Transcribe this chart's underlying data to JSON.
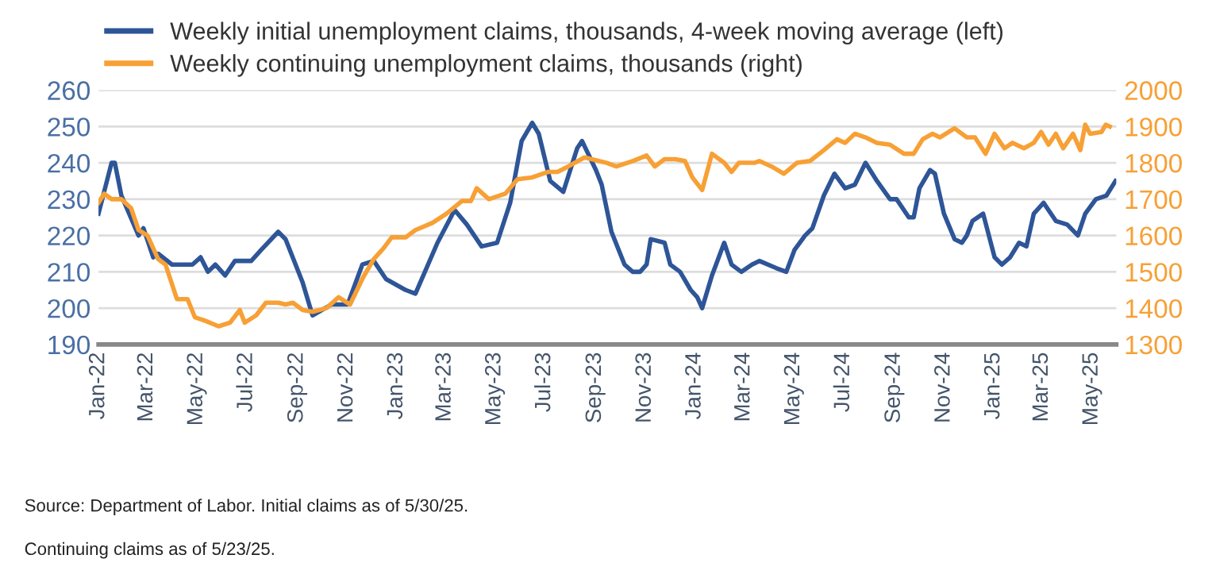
{
  "chart_data": {
    "type": "line",
    "series": [
      {
        "name": "Weekly initial unemployment claims, thousands, 4-week moving average (left)",
        "color": "#2e5597",
        "axis": "y",
        "x": [
          "2022-01-01",
          "2022-01-17",
          "2022-01-21",
          "2022-01-29",
          "2022-02-19",
          "2022-02-25",
          "2022-03-09",
          "2022-03-15",
          "2022-04-01",
          "2022-04-26",
          "2022-05-06",
          "2022-05-15",
          "2022-05-24",
          "2022-06-05",
          "2022-06-17",
          "2022-07-07",
          "2022-07-19",
          "2022-08-09",
          "2022-08-18",
          "2022-09-08",
          "2022-09-20",
          "2022-10-13",
          "2022-11-02",
          "2022-11-20",
          "2022-12-04",
          "2022-12-19",
          "2023-01-12",
          "2023-01-24",
          "2023-02-20",
          "2023-03-13",
          "2023-03-28",
          "2023-04-15",
          "2023-05-04",
          "2023-05-20",
          "2023-06-03",
          "2023-06-16",
          "2023-06-24",
          "2023-07-08",
          "2023-07-24",
          "2023-08-10",
          "2023-08-16",
          "2023-09-02",
          "2023-09-09",
          "2023-09-21",
          "2023-10-07",
          "2023-10-17",
          "2023-10-26",
          "2023-11-03",
          "2023-11-08",
          "2023-11-25",
          "2023-12-02",
          "2023-12-14",
          "2023-12-27",
          "2024-01-04",
          "2024-01-10",
          "2024-01-22",
          "2024-02-06",
          "2024-02-15",
          "2024-02-27",
          "2024-03-11",
          "2024-03-20",
          "2024-04-10",
          "2024-04-22",
          "2024-05-02",
          "2024-05-15",
          "2024-05-24",
          "2024-06-07",
          "2024-06-20",
          "2024-07-03",
          "2024-07-15",
          "2024-07-28",
          "2024-08-11",
          "2024-08-27",
          "2024-09-04",
          "2024-09-19",
          "2024-09-25",
          "2024-10-02",
          "2024-10-15",
          "2024-10-21",
          "2024-11-01",
          "2024-11-14",
          "2024-11-23",
          "2024-11-29",
          "2024-12-06",
          "2024-12-19",
          "2025-01-02",
          "2025-01-11",
          "2025-01-21",
          "2025-02-01",
          "2025-02-10",
          "2025-02-19",
          "2025-03-03",
          "2025-03-18",
          "2025-04-01",
          "2025-04-14",
          "2025-04-23",
          "2025-05-06",
          "2025-05-19",
          "2025-05-30"
        ],
        "values": [
          226,
          240,
          240,
          231,
          220,
          222,
          214,
          215,
          212,
          212,
          214,
          210,
          212,
          209,
          213,
          213,
          216,
          221,
          219,
          207,
          198,
          201,
          201,
          212,
          213,
          208,
          205,
          204,
          218,
          227,
          223,
          217,
          218,
          229,
          246,
          251,
          248,
          235,
          232,
          244,
          246,
          238,
          234,
          221,
          212,
          210,
          210,
          212,
          219,
          218,
          212,
          210,
          205,
          203,
          200,
          209,
          218,
          212,
          210,
          212,
          213,
          211,
          210,
          216,
          220,
          222,
          231,
          237,
          233,
          234,
          240,
          235,
          230,
          230,
          225,
          225,
          233,
          238,
          237,
          226,
          219,
          218,
          220,
          224,
          226,
          214,
          212,
          214,
          218,
          217,
          226,
          229,
          224,
          223,
          220,
          226,
          230,
          231,
          235
        ]
      },
      {
        "name": "Weekly continuing unemployment claims, thousands (right)",
        "color": "#f7a035",
        "axis": "y2",
        "x": [
          "2022-01-01",
          "2022-01-08",
          "2022-01-17",
          "2022-01-29",
          "2022-02-10",
          "2022-02-19",
          "2022-03-02",
          "2022-03-15",
          "2022-03-24",
          "2022-04-07",
          "2022-04-20",
          "2022-04-29",
          "2022-05-12",
          "2022-05-28",
          "2022-06-11",
          "2022-06-23",
          "2022-06-29",
          "2022-07-13",
          "2022-07-25",
          "2022-08-09",
          "2022-08-18",
          "2022-08-27",
          "2022-09-08",
          "2022-09-20",
          "2022-10-07",
          "2022-10-22",
          "2022-11-05",
          "2022-11-21",
          "2022-12-04",
          "2022-12-16",
          "2022-12-26",
          "2023-01-12",
          "2023-01-24",
          "2023-02-14",
          "2023-03-03",
          "2023-03-22",
          "2023-04-02",
          "2023-04-09",
          "2023-04-24",
          "2023-05-14",
          "2023-05-29",
          "2023-06-16",
          "2023-07-05",
          "2023-07-17",
          "2023-07-30",
          "2023-08-19",
          "2023-09-15",
          "2023-09-27",
          "2023-10-17",
          "2023-11-03",
          "2023-11-13",
          "2023-11-25",
          "2023-12-08",
          "2023-12-20",
          "2023-12-29",
          "2024-01-10",
          "2024-01-22",
          "2024-02-06",
          "2024-02-15",
          "2024-02-24",
          "2024-03-14",
          "2024-03-20",
          "2024-04-04",
          "2024-04-19",
          "2024-05-05",
          "2024-05-21",
          "2024-06-07",
          "2024-06-23",
          "2024-07-03",
          "2024-07-15",
          "2024-07-28",
          "2024-08-11",
          "2024-08-27",
          "2024-09-13",
          "2024-09-25",
          "2024-10-06",
          "2024-10-18",
          "2024-10-27",
          "2024-11-14",
          "2024-11-29",
          "2024-12-09",
          "2024-12-22",
          "2025-01-02",
          "2025-01-14",
          "2025-01-24",
          "2025-02-07",
          "2025-02-19",
          "2025-02-28",
          "2025-03-09",
          "2025-03-18",
          "2025-03-27",
          "2025-04-08",
          "2025-04-17",
          "2025-04-23",
          "2025-04-29",
          "2025-05-13",
          "2025-05-18",
          "2025-05-23"
        ],
        "values": [
          1690,
          1715,
          1700,
          1700,
          1675,
          1615,
          1600,
          1535,
          1520,
          1425,
          1425,
          1375,
          1365,
          1350,
          1360,
          1395,
          1360,
          1380,
          1415,
          1415,
          1410,
          1415,
          1395,
          1390,
          1400,
          1430,
          1410,
          1485,
          1535,
          1565,
          1595,
          1595,
          1615,
          1635,
          1660,
          1695,
          1695,
          1730,
          1700,
          1715,
          1755,
          1760,
          1775,
          1775,
          1790,
          1815,
          1800,
          1790,
          1805,
          1820,
          1790,
          1810,
          1810,
          1805,
          1760,
          1725,
          1825,
          1800,
          1775,
          1800,
          1800,
          1805,
          1790,
          1770,
          1800,
          1805,
          1835,
          1865,
          1855,
          1880,
          1870,
          1855,
          1850,
          1825,
          1825,
          1865,
          1880,
          1870,
          1895,
          1870,
          1870,
          1825,
          1880,
          1840,
          1855,
          1840,
          1855,
          1885,
          1850,
          1880,
          1840,
          1880,
          1835,
          1905,
          1880,
          1885,
          1905,
          1900
        ]
      }
    ],
    "xlim": [
      "2022-01-01",
      "2025-05-31"
    ],
    "xticks": [
      {
        "value": "2022-01-01",
        "label": "Jan-22"
      },
      {
        "value": "2022-03-01",
        "label": "Mar-22"
      },
      {
        "value": "2022-05-01",
        "label": "May-22"
      },
      {
        "value": "2022-07-01",
        "label": "Jul-22"
      },
      {
        "value": "2022-09-01",
        "label": "Sep-22"
      },
      {
        "value": "2022-11-01",
        "label": "Nov-22"
      },
      {
        "value": "2023-01-01",
        "label": "Jan-23"
      },
      {
        "value": "2023-03-01",
        "label": "Mar-23"
      },
      {
        "value": "2023-05-01",
        "label": "May-23"
      },
      {
        "value": "2023-07-01",
        "label": "Jul-23"
      },
      {
        "value": "2023-09-01",
        "label": "Sep-23"
      },
      {
        "value": "2023-11-01",
        "label": "Nov-23"
      },
      {
        "value": "2024-01-01",
        "label": "Jan-24"
      },
      {
        "value": "2024-03-01",
        "label": "Mar-24"
      },
      {
        "value": "2024-05-01",
        "label": "May-24"
      },
      {
        "value": "2024-07-01",
        "label": "Jul-24"
      },
      {
        "value": "2024-09-01",
        "label": "Sep-24"
      },
      {
        "value": "2024-11-01",
        "label": "Nov-24"
      },
      {
        "value": "2025-01-01",
        "label": "Jan-25"
      },
      {
        "value": "2025-03-01",
        "label": "Mar-25"
      },
      {
        "value": "2025-05-01",
        "label": "May-25"
      }
    ],
    "ylim": [
      190,
      260
    ],
    "yticks": [
      190,
      200,
      210,
      220,
      230,
      240,
      250,
      260
    ],
    "y2lim": [
      1300,
      2000
    ],
    "y2ticks": [
      1300,
      1400,
      1500,
      1600,
      1700,
      1800,
      1900,
      2000
    ],
    "grid": "y",
    "legend": "top left",
    "marker": "none",
    "line_style": "solid",
    "annotations": [
      "Source: Department of Labor. Initial claims as of 5/30/25.",
      "Continuing claims as of 5/23/25."
    ]
  }
}
